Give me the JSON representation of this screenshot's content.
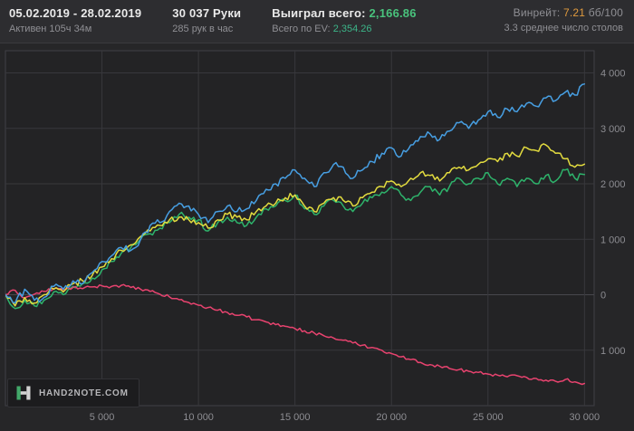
{
  "header": {
    "date_range": "05.02.2019 - 28.02.2019",
    "active_time": "Активен 105ч 34м",
    "hands_total": "30 037 Руки",
    "hands_per_hour": "285 рук в час",
    "won_label": "Выиграл всего:",
    "won_value": "2,166.86",
    "ev_label": "Всего по EV:",
    "ev_value": "2,354.26",
    "winrate_label": "Винрейт:",
    "winrate_value": "7.21",
    "winrate_unit": "бб/100",
    "avg_tables": "3.3 среднее число столов"
  },
  "footer": {
    "logo_text": "HAND2NOTE.COM"
  },
  "colors": {
    "plot_bg": "#232325",
    "plot_border": "#404046",
    "grid": "#38383c",
    "grid_zero": "#47474d",
    "axis_text": "#8d8d92",
    "accent_green": "#49c27c",
    "accent_teal": "#3cb589",
    "accent_orange": "#e09a3e"
  },
  "chart_data": {
    "type": "line",
    "title": "",
    "xlabel": "",
    "ylabel": "",
    "grid": true,
    "legend": "none",
    "xlim": [
      0,
      30500
    ],
    "ylim": [
      -2000,
      4400
    ],
    "x_start": 0,
    "x_step": 500,
    "x_ticks": [
      {
        "value": 5000,
        "label": "5 000"
      },
      {
        "value": 10000,
        "label": "10 000"
      },
      {
        "value": 15000,
        "label": "15 000"
      },
      {
        "value": 20000,
        "label": "20 000"
      },
      {
        "value": 25000,
        "label": "25 000"
      },
      {
        "value": 30000,
        "label": "30 000"
      }
    ],
    "y_ticks": [
      {
        "value": 4000,
        "label": "4 000"
      },
      {
        "value": 3000,
        "label": "3 000"
      },
      {
        "value": 2000,
        "label": "2 000"
      },
      {
        "value": 1000,
        "label": "1 000"
      },
      {
        "value": 0,
        "label": "0"
      },
      {
        "value": -1000,
        "label": "1 000"
      }
    ],
    "series": [
      {
        "name": "green-line",
        "color": "#2eb36b",
        "noise": 55,
        "values": [
          0,
          -250,
          -100,
          -200,
          -100,
          50,
          0,
          150,
          200,
          300,
          450,
          600,
          750,
          850,
          1000,
          1100,
          1200,
          1300,
          1450,
          1400,
          1350,
          1150,
          1300,
          1400,
          1300,
          1250,
          1400,
          1550,
          1600,
          1700,
          1800,
          1550,
          1450,
          1600,
          1700,
          1600,
          1500,
          1650,
          1750,
          1850,
          1950,
          1800,
          1700,
          1850,
          1950,
          1800,
          1950,
          2100,
          2000,
          2100,
          2200,
          2000,
          2100,
          1950,
          2100,
          2000,
          2150,
          2050,
          2250,
          2100,
          2167
        ]
      },
      {
        "name": "red-line",
        "color": "#e8436f",
        "noise": 28,
        "values": [
          0,
          80,
          -60,
          10,
          60,
          110,
          90,
          130,
          110,
          140,
          160,
          150,
          170,
          130,
          100,
          60,
          10,
          -40,
          -90,
          -140,
          -190,
          -230,
          -280,
          -320,
          -370,
          -400,
          -450,
          -490,
          -540,
          -570,
          -610,
          -650,
          -690,
          -740,
          -780,
          -820,
          -870,
          -910,
          -950,
          -1000,
          -1060,
          -1120,
          -1170,
          -1220,
          -1260,
          -1290,
          -1330,
          -1350,
          -1380,
          -1400,
          -1430,
          -1450,
          -1480,
          -1460,
          -1490,
          -1510,
          -1540,
          -1560,
          -1530,
          -1570,
          -1600
        ]
      },
      {
        "name": "yellow-line",
        "color": "#e3dc3f",
        "noise": 55,
        "values": [
          0,
          -200,
          -50,
          -150,
          0,
          100,
          50,
          200,
          250,
          350,
          500,
          650,
          800,
          900,
          1050,
          1150,
          1250,
          1350,
          1400,
          1350,
          1300,
          1200,
          1350,
          1450,
          1400,
          1350,
          1500,
          1600,
          1650,
          1750,
          1800,
          1600,
          1500,
          1650,
          1750,
          1700,
          1600,
          1750,
          1850,
          1950,
          2050,
          1950,
          2100,
          2200,
          2150,
          2050,
          2200,
          2300,
          2250,
          2350,
          2450,
          2400,
          2550,
          2500,
          2650,
          2600,
          2700,
          2550,
          2450,
          2300,
          2354
        ]
      },
      {
        "name": "blue-line",
        "color": "#479fe3",
        "noise": 65,
        "values": [
          0,
          -150,
          100,
          -100,
          -50,
          150,
          100,
          250,
          200,
          400,
          600,
          700,
          850,
          800,
          1000,
          1250,
          1300,
          1500,
          1650,
          1600,
          1450,
          1300,
          1500,
          1600,
          1500,
          1550,
          1700,
          1900,
          2000,
          2100,
          2250,
          2100,
          1950,
          2200,
          2350,
          2300,
          2100,
          2250,
          2400,
          2550,
          2650,
          2500,
          2700,
          2850,
          2900,
          2800,
          2950,
          3100,
          3000,
          3150,
          3300,
          3200,
          3350,
          3300,
          3450,
          3400,
          3550,
          3500,
          3650,
          3600,
          3800
        ]
      }
    ]
  }
}
